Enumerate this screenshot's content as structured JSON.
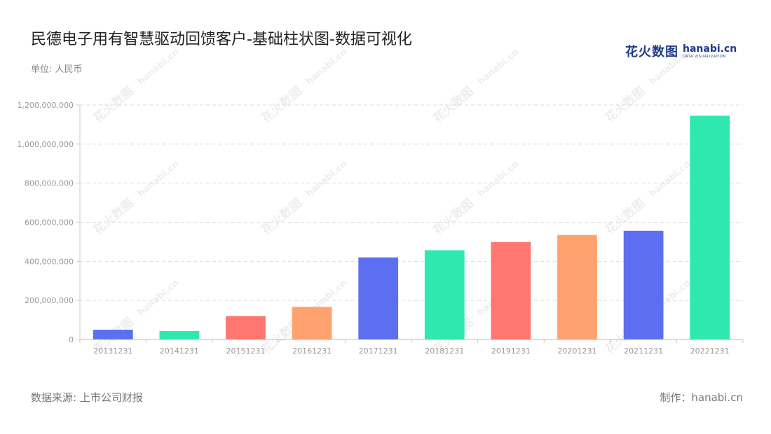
{
  "header": {
    "title": "民德电子用有智慧驱动回馈客户-基础柱状图-数据可视化",
    "unit": "单位: 人民币"
  },
  "logo": {
    "cn": "花火数图",
    "en": "hanabi.cn",
    "sub": "DATA VISUALIZATION"
  },
  "footer": {
    "source": "数据来源: 上市公司财报",
    "credit": "制作：hanabi.cn"
  },
  "colors": {
    "palette": [
      "#5b6ff0",
      "#2ee8b0",
      "#ff7770",
      "#ffa270"
    ],
    "grid": "#dddddd",
    "axis_text": "#999999"
  },
  "chart_data": {
    "type": "bar",
    "categories": [
      "20131231",
      "20141231",
      "20151231",
      "20161231",
      "20171231",
      "20181231",
      "20191231",
      "20201231",
      "20211231",
      "20221231"
    ],
    "values": [
      50000000,
      43000000,
      120000000,
      167000000,
      420000000,
      457000000,
      498000000,
      535000000,
      556000000,
      1145000000
    ],
    "bar_colors": [
      "#5b6ff0",
      "#2ee8b0",
      "#ff7770",
      "#ffa270",
      "#5b6ff0",
      "#2ee8b0",
      "#ff7770",
      "#ffa270",
      "#5b6ff0",
      "#2ee8b0"
    ],
    "y_ticks": [
      "0",
      "200,000,000",
      "400,000,000",
      "600,000,000",
      "800,000,000",
      "1,000,000,000",
      "1,200,000,000"
    ],
    "ylim": [
      0,
      1200000000
    ],
    "grid": true,
    "legend": "none"
  }
}
